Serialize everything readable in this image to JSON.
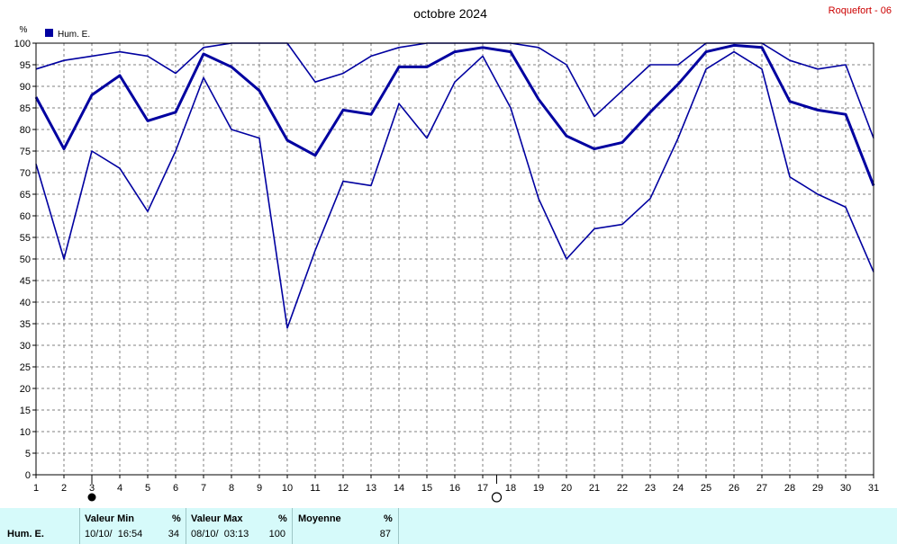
{
  "chart_data": {
    "type": "line",
    "title": "octobre 2024",
    "station": "Roquefort - 06",
    "ylabel_unit": "%",
    "ylim": [
      0,
      100
    ],
    "ytick_step": 5,
    "xlim": [
      1,
      31
    ],
    "x": [
      1,
      2,
      3,
      4,
      5,
      6,
      7,
      8,
      9,
      10,
      11,
      12,
      13,
      14,
      15,
      16,
      17,
      18,
      19,
      20,
      21,
      22,
      23,
      24,
      25,
      26,
      27,
      28,
      29,
      30,
      31
    ],
    "legend": "Hum. E.",
    "legend_position": "top-left",
    "grid": true,
    "color": "#0000a0",
    "series": [
      {
        "name": "max",
        "values": [
          94,
          96,
          97,
          98,
          97,
          93,
          99,
          100,
          100,
          100,
          91,
          93,
          97,
          99,
          100,
          100,
          100,
          100,
          99,
          95,
          83,
          89,
          95,
          95,
          100,
          100,
          100,
          96,
          94,
          95,
          78
        ]
      },
      {
        "name": "mean",
        "values": [
          87.5,
          75.5,
          88,
          92.5,
          82,
          84,
          97.5,
          94.5,
          89,
          77.5,
          74,
          84.5,
          83.5,
          94.5,
          94.5,
          98,
          99,
          98,
          87,
          78.5,
          75.5,
          77,
          84,
          90.5,
          98,
          99.5,
          99,
          86.5,
          84.5,
          83.5,
          67
        ]
      },
      {
        "name": "min",
        "values": [
          72,
          50,
          75,
          71,
          61,
          75,
          92,
          80,
          78,
          34,
          52,
          68,
          67,
          86,
          78,
          91,
          97,
          85,
          64,
          50,
          57,
          58,
          64,
          78,
          94,
          98,
          94,
          69,
          65,
          62,
          47
        ]
      }
    ],
    "markers": [
      {
        "day": 3,
        "type": "new-moon"
      },
      {
        "day": 17.5,
        "type": "full-moon"
      }
    ]
  },
  "stats": {
    "row_label": "Hum. E.",
    "min_header": "Valeur Min",
    "min_unit": "%",
    "min_when": "10/10/  16:54",
    "min_value": "34",
    "max_header": "Valeur Max",
    "max_unit": "%",
    "max_when": "08/10/  03:13",
    "max_value": "100",
    "mean_header": "Moyenne",
    "mean_unit": "%",
    "mean_value": "87"
  }
}
